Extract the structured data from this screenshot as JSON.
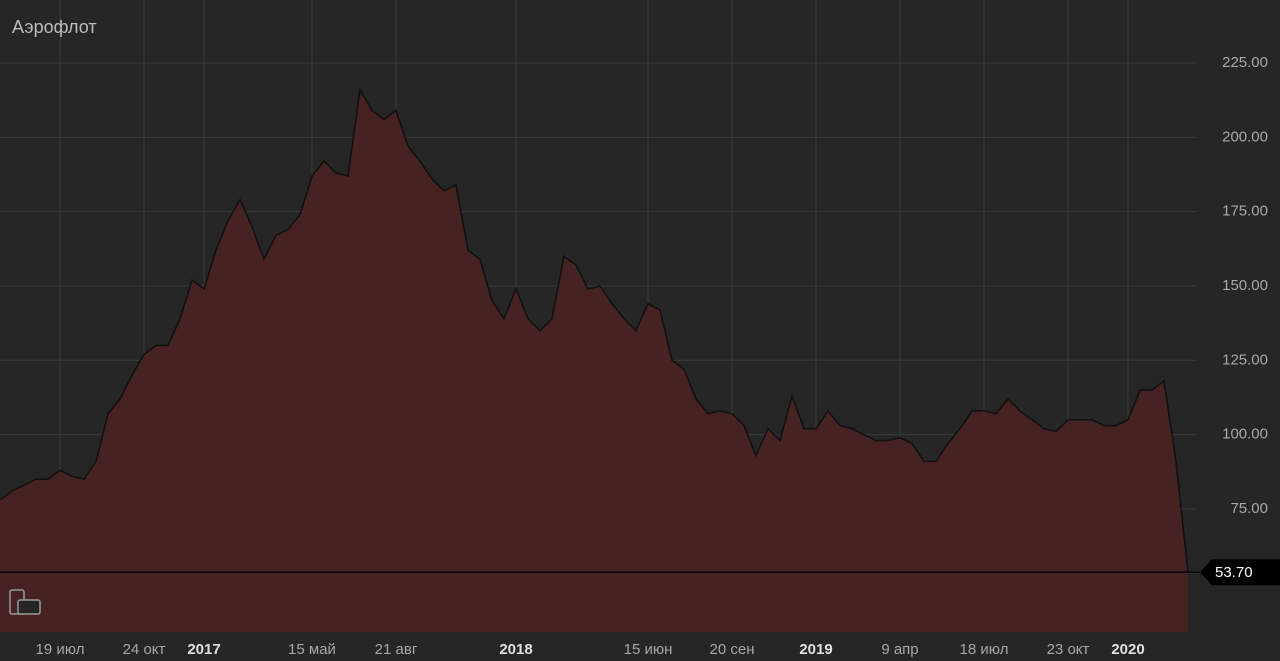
{
  "chart_data": {
    "type": "area",
    "title": "Аэрофлот",
    "categories": [
      null,
      null,
      null,
      null,
      null,
      "19 июл",
      null,
      null,
      null,
      null,
      null,
      null,
      "24 окт",
      null,
      null,
      null,
      null,
      "2017",
      null,
      null,
      null,
      null,
      null,
      null,
      null,
      null,
      "15 май",
      null,
      null,
      null,
      null,
      null,
      null,
      "21 авг",
      null,
      null,
      null,
      null,
      null,
      null,
      null,
      null,
      null,
      "2018",
      null,
      null,
      null,
      null,
      null,
      null,
      null,
      null,
      null,
      null,
      "15 июн",
      null,
      null,
      null,
      null,
      null,
      null,
      "20 сен",
      null,
      null,
      null,
      null,
      null,
      null,
      "2019",
      null,
      null,
      null,
      null,
      null,
      null,
      "9 апр",
      null,
      null,
      null,
      null,
      null,
      null,
      "18 июл",
      null,
      null,
      null,
      null,
      null,
      null,
      "23 окт",
      null,
      null,
      null,
      null,
      "2020",
      null,
      null,
      null,
      null,
      null
    ],
    "values": [
      78,
      81,
      83,
      85,
      85,
      88,
      86,
      85,
      91,
      107,
      112,
      120,
      127,
      130,
      130,
      139,
      152,
      149,
      162,
      172,
      179,
      170,
      159,
      167,
      169,
      174,
      187,
      192,
      188,
      187,
      216,
      209,
      206,
      209,
      197,
      192,
      186,
      182,
      184,
      162,
      159,
      145,
      139,
      149,
      139,
      135,
      139,
      160,
      157,
      149,
      150,
      144,
      139,
      135,
      144,
      142,
      125,
      122,
      112,
      107,
      108,
      107,
      103,
      93,
      102,
      98,
      113,
      102,
      102,
      108,
      103,
      102,
      100,
      98,
      98,
      99,
      97,
      91,
      91,
      97,
      102,
      108,
      108,
      107,
      112,
      108,
      105,
      102,
      101,
      105,
      105,
      105,
      103,
      103,
      105,
      115,
      115,
      118,
      91,
      53.7
    ],
    "color": "#4a2222",
    "line_color": "#111111",
    "ylim": [
      33.6,
      246.2
    ],
    "yticks": [
      {
        "value": 75,
        "label": "75.00"
      },
      {
        "value": 100,
        "label": "100.00"
      },
      {
        "value": 125,
        "label": "125.00"
      },
      {
        "value": 150,
        "label": "150.00"
      },
      {
        "value": 175,
        "label": "175.00"
      },
      {
        "value": 200,
        "label": "200.00"
      },
      {
        "value": 225,
        "label": "225.00"
      }
    ],
    "price_line": {
      "value": 53.7,
      "label": "53.70"
    },
    "grid": true
  }
}
